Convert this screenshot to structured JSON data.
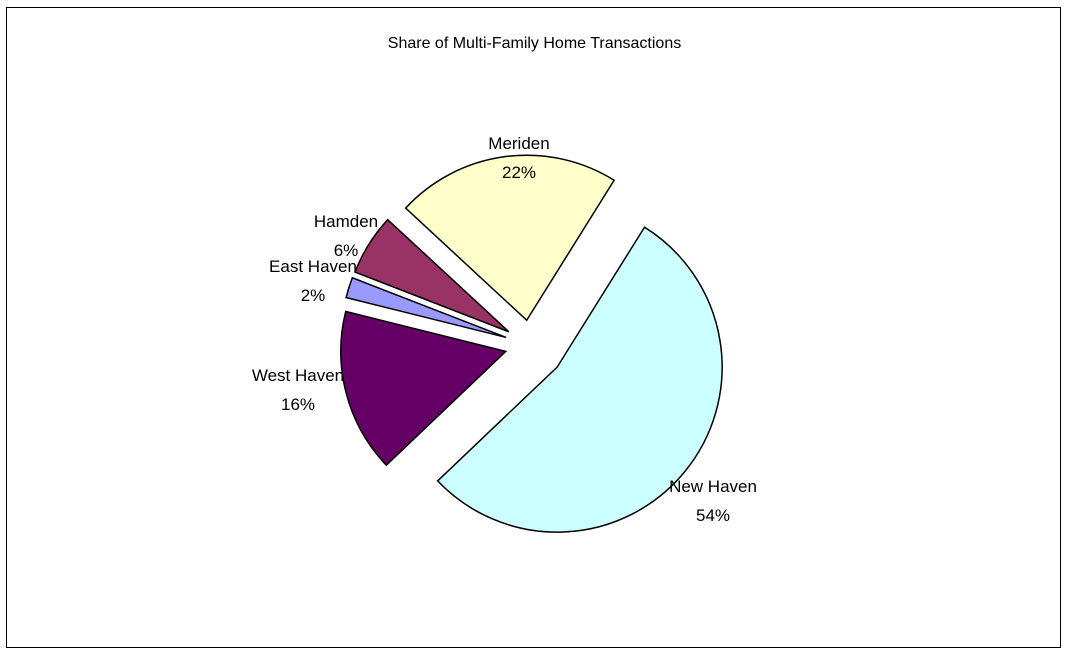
{
  "chart_data": {
    "type": "pie",
    "title": "Share of Multi-Family Home Transactions",
    "categories": [
      "New Haven",
      "West Haven",
      "East Haven",
      "Hamden",
      "Meriden"
    ],
    "values": [
      54,
      16,
      2,
      6,
      22
    ],
    "percent_labels": [
      "54%",
      "16%",
      "2%",
      "6%",
      "22%"
    ],
    "colors": [
      "#CCFFFF",
      "#660066",
      "#9999FF",
      "#993366",
      "#FFFFCC"
    ],
    "exploded": true,
    "legend": "none"
  }
}
